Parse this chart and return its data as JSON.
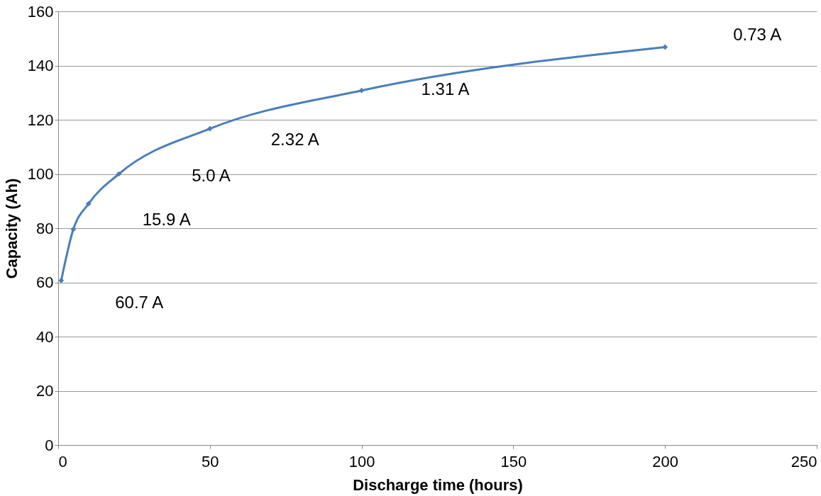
{
  "chart_data": {
    "type": "line",
    "xlabel": "Discharge time (hours)",
    "ylabel": "Capacity (Ah)",
    "x": [
      1,
      5,
      10,
      20,
      50,
      100,
      200
    ],
    "series": [
      {
        "color": "#4a7ebb",
        "values": [
          60.7,
          79.6,
          89,
          100,
          116.7,
          130.8,
          146.8
        ]
      }
    ],
    "xlim": [
      0,
      250
    ],
    "xticks": [
      0,
      50,
      100,
      150,
      200,
      250
    ],
    "ylim": [
      0,
      160
    ],
    "yticks": [
      0,
      20,
      40,
      60,
      80,
      100,
      120,
      140,
      160
    ],
    "grid": "y",
    "marker": "diamond",
    "line_style": "solid",
    "annotations": [
      "60.7 A",
      "15.9 A",
      "5.0 A",
      "2.32 A",
      "1.31 A",
      "0.73 A"
    ]
  }
}
